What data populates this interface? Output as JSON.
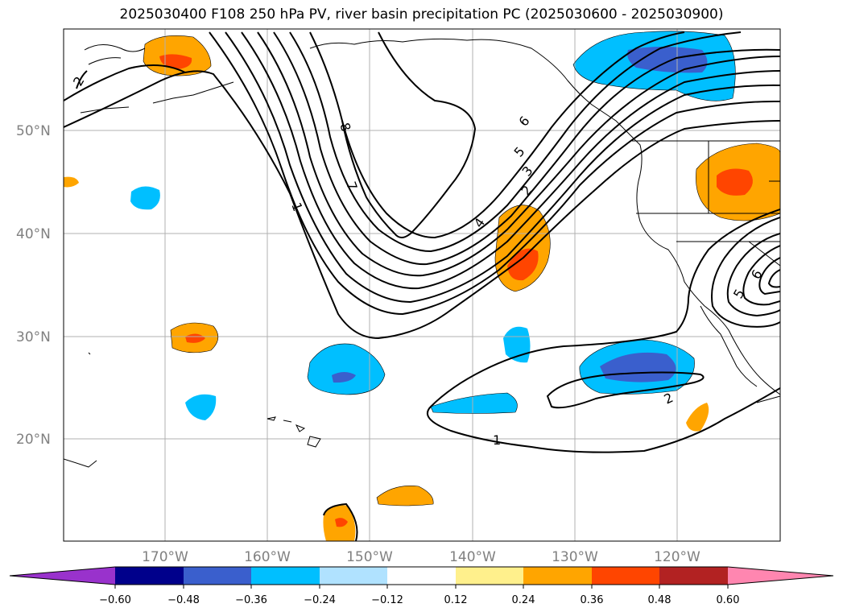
{
  "title": "2025030400 F108 250 hPa PV, river basin precipitation PC (2025030600 - 2025030900)",
  "map": {
    "lat_labels": [
      "50°N",
      "40°N",
      "30°N",
      "20°N"
    ],
    "lon_labels": [
      "170°W",
      "160°W",
      "150°W",
      "140°W",
      "130°W",
      "120°W"
    ],
    "contour_labels": [
      "2",
      "8",
      "7",
      "1",
      "6",
      "5",
      "3",
      "2",
      "4",
      "1",
      "2",
      "5",
      "6"
    ]
  },
  "colorbar": {
    "ticks": [
      "−0.60",
      "−0.48",
      "−0.36",
      "−0.24",
      "−0.12",
      "0.12",
      "0.24",
      "0.36",
      "0.48",
      "0.60"
    ],
    "colors": [
      "#9932cc",
      "#00008b",
      "#3a5fcd",
      "#00bfff",
      "#b0e2ff",
      "#ffffff",
      "#fff08c",
      "#ffa500",
      "#ff4500",
      "#b22222",
      "#ff86b0"
    ]
  }
}
